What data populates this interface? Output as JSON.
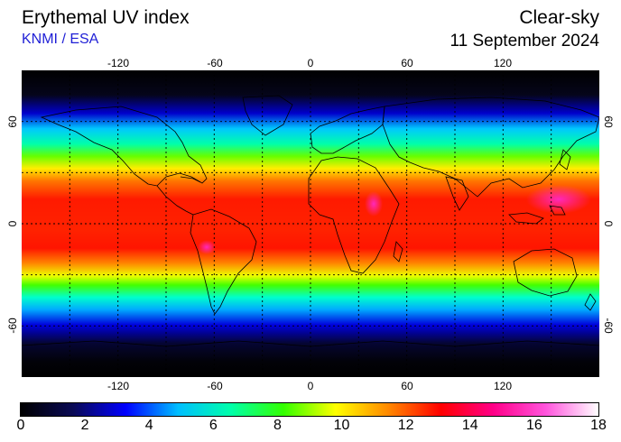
{
  "header": {
    "title": "Erythemal UV index",
    "credit": "KNMI / ESA",
    "product": "Clear-sky",
    "date": "11 September 2024"
  },
  "map": {
    "projection": "equirectangular",
    "lon_range": [
      -180,
      180
    ],
    "lat_range": [
      -90,
      90
    ],
    "lon_ticks": [
      "-120",
      "-60",
      "0",
      "60",
      "120"
    ],
    "lat_ticks": [
      "60",
      "0",
      "-60"
    ],
    "gridlines": "dotted, every 30 degrees",
    "coastlines": true
  },
  "colorbar": {
    "ticks": [
      "0",
      "2",
      "4",
      "6",
      "8",
      "10",
      "12",
      "14",
      "16",
      "18"
    ],
    "stops": [
      "#000000",
      "#0a0a55",
      "#0000ff",
      "#00bfff",
      "#00ffaa",
      "#33ff00",
      "#ffff00",
      "#ff8800",
      "#ff0000",
      "#ff0088",
      "#ff55dd",
      "#ffffff"
    ]
  }
}
